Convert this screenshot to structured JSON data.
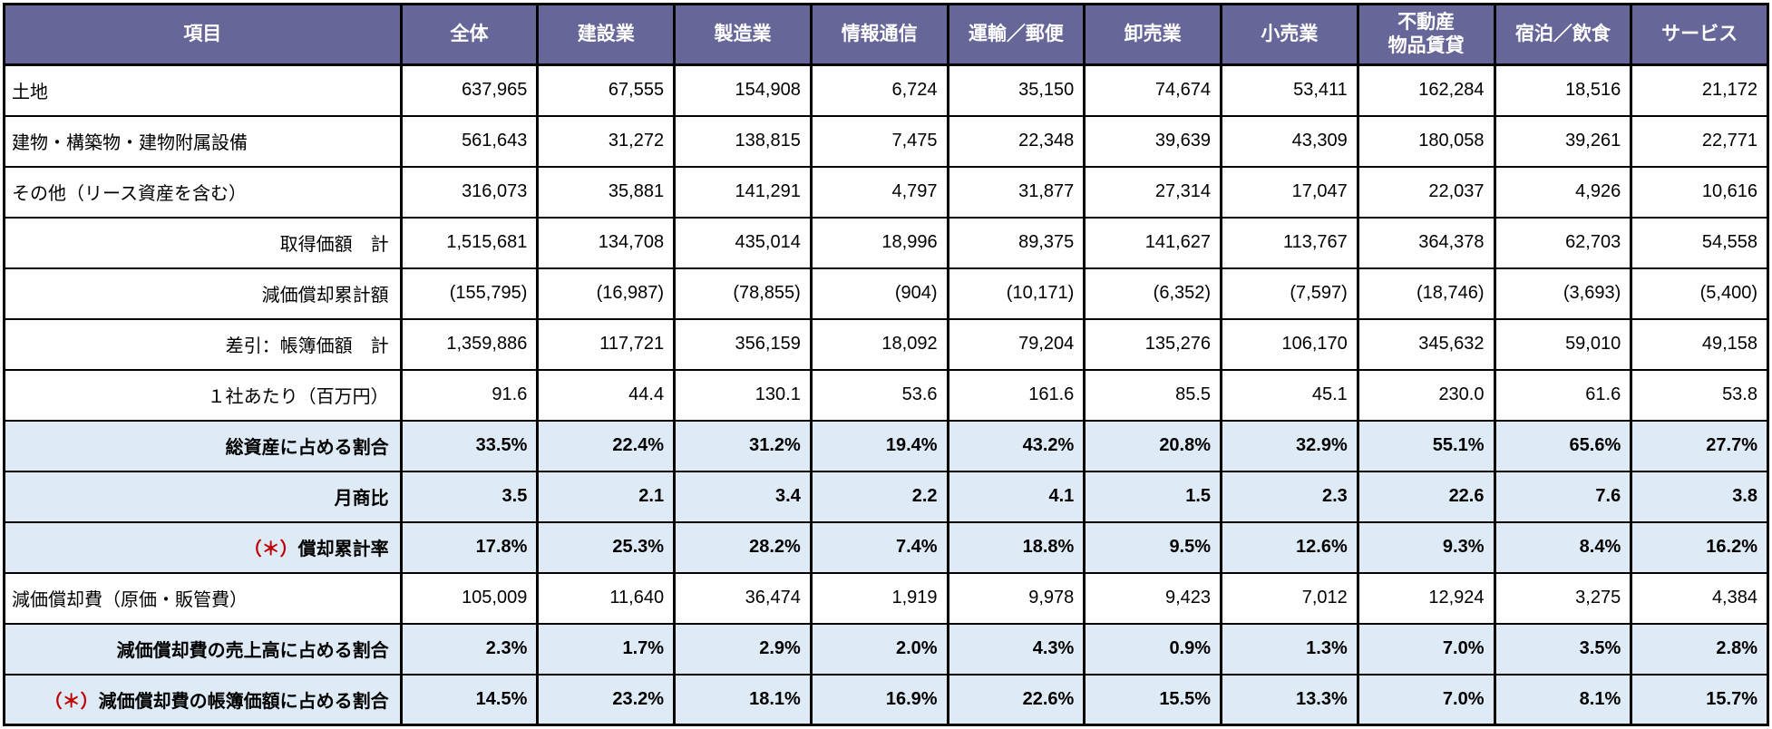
{
  "chart_data": {
    "type": "table",
    "columns": [
      "項目",
      "全体",
      "建設業",
      "製造業",
      "情報通信",
      "運輸／郵便",
      "卸売業",
      "小売業",
      "不動産\n物品賃貸",
      "宿泊／飲食",
      "サービス"
    ],
    "rows": [
      {
        "label": "土地",
        "prefix": "",
        "align": "left",
        "highlight": false,
        "values": [
          "637,965",
          "67,555",
          "154,908",
          "6,724",
          "35,150",
          "74,674",
          "53,411",
          "162,284",
          "18,516",
          "21,172"
        ]
      },
      {
        "label": "建物・構築物・建物附属設備",
        "prefix": "",
        "align": "left",
        "highlight": false,
        "values": [
          "561,643",
          "31,272",
          "138,815",
          "7,475",
          "22,348",
          "39,639",
          "43,309",
          "180,058",
          "39,261",
          "22,771"
        ]
      },
      {
        "label": "その他（リース資産を含む）",
        "prefix": "",
        "align": "left",
        "highlight": false,
        "values": [
          "316,073",
          "35,881",
          "141,291",
          "4,797",
          "31,877",
          "27,314",
          "17,047",
          "22,037",
          "4,926",
          "10,616"
        ]
      },
      {
        "label": "取得価額　計",
        "prefix": "",
        "align": "right",
        "highlight": false,
        "values": [
          "1,515,681",
          "134,708",
          "435,014",
          "18,996",
          "89,375",
          "141,627",
          "113,767",
          "364,378",
          "62,703",
          "54,558"
        ]
      },
      {
        "label": "減価償却累計額",
        "prefix": "",
        "align": "right",
        "highlight": false,
        "values": [
          "(155,795)",
          "(16,987)",
          "(78,855)",
          "(904)",
          "(10,171)",
          "(6,352)",
          "(7,597)",
          "(18,746)",
          "(3,693)",
          "(5,400)"
        ]
      },
      {
        "label": "差引：帳簿価額　計",
        "prefix": "",
        "align": "right",
        "highlight": false,
        "values": [
          "1,359,886",
          "117,721",
          "356,159",
          "18,092",
          "79,204",
          "135,276",
          "106,170",
          "345,632",
          "59,010",
          "49,158"
        ]
      },
      {
        "label": "１社あたり（百万円）",
        "prefix": "",
        "align": "right",
        "highlight": false,
        "values": [
          "91.6",
          "44.4",
          "130.1",
          "53.6",
          "161.6",
          "85.5",
          "45.1",
          "230.0",
          "61.6",
          "53.8"
        ]
      },
      {
        "label": "総資産に占める割合",
        "prefix": "",
        "align": "right",
        "highlight": true,
        "values": [
          "33.5%",
          "22.4%",
          "31.2%",
          "19.4%",
          "43.2%",
          "20.8%",
          "32.9%",
          "55.1%",
          "65.6%",
          "27.7%"
        ]
      },
      {
        "label": "月商比",
        "prefix": "",
        "align": "right",
        "highlight": true,
        "values": [
          "3.5",
          "2.1",
          "3.4",
          "2.2",
          "4.1",
          "1.5",
          "2.3",
          "22.6",
          "7.6",
          "3.8"
        ]
      },
      {
        "label": "償却累計率",
        "prefix": "（＊）",
        "align": "right",
        "highlight": true,
        "values": [
          "17.8%",
          "25.3%",
          "28.2%",
          "7.4%",
          "18.8%",
          "9.5%",
          "12.6%",
          "9.3%",
          "8.4%",
          "16.2%"
        ]
      },
      {
        "label": "減価償却費（原価・販管費）",
        "prefix": "",
        "align": "left",
        "highlight": false,
        "values": [
          "105,009",
          "11,640",
          "36,474",
          "1,919",
          "9,978",
          "9,423",
          "7,012",
          "12,924",
          "3,275",
          "4,384"
        ]
      },
      {
        "label": "減価償却費の売上高に占める割合",
        "prefix": "",
        "align": "right",
        "highlight": true,
        "values": [
          "2.3%",
          "1.7%",
          "2.9%",
          "2.0%",
          "4.3%",
          "0.9%",
          "1.3%",
          "7.0%",
          "3.5%",
          "2.8%"
        ]
      },
      {
        "label": "減価償却費の帳簿価額に占める割合",
        "prefix": "（＊）",
        "align": "right",
        "highlight": true,
        "values": [
          "14.5%",
          "23.2%",
          "18.1%",
          "16.9%",
          "22.6%",
          "15.5%",
          "13.3%",
          "7.0%",
          "8.1%",
          "15.7%"
        ]
      }
    ],
    "layout": {
      "legend": "none",
      "grid": "all-borders",
      "header_position": "top"
    },
    "colors": {
      "header_bg": "#666699",
      "header_text": "#FFFFFF",
      "highlight_row_bg": "#DEEAF6",
      "asterisk_red": "#C00000",
      "border": "#000000"
    }
  }
}
